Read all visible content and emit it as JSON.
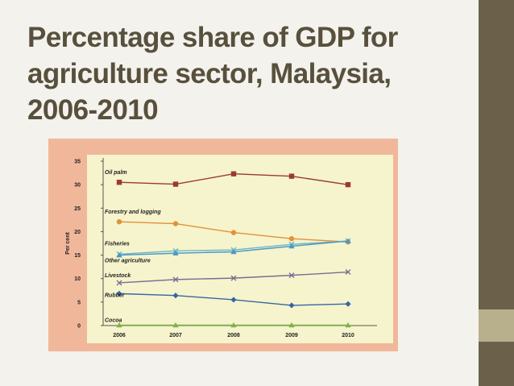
{
  "slide": {
    "title_line1": "Percentage share of GDP for",
    "title_line2": "agriculture sector, Malaysia,",
    "title_line3": "2006-2010"
  },
  "colors": {
    "oil_palm": "#9a3a34",
    "forestry": "#e0913a",
    "fisheries": "#6bb8c4",
    "other_agriculture": "#4c98c8",
    "livestock": "#7a6d96",
    "rubber": "#3566a8",
    "cocoa": "#7db545",
    "plot_bg": "#f6f4cc",
    "frame_bg": "#f1b79a"
  },
  "chart_data": {
    "type": "line",
    "title": "",
    "xlabel": "",
    "ylabel": "Per cent",
    "x": [
      "2006",
      "2007",
      "2008",
      "2009",
      "2010"
    ],
    "ylim": [
      0,
      35
    ],
    "yticks": [
      0,
      5,
      10,
      15,
      20,
      25,
      30,
      35
    ],
    "grid": false,
    "legend": "inline labels",
    "series": [
      {
        "name": "Oil palm",
        "color": "#9a3a34",
        "marker": "square",
        "values": [
          30.5,
          30.1,
          32.3,
          31.8,
          30.0
        ]
      },
      {
        "name": "Forestry and logging",
        "color": "#e0913a",
        "marker": "circle",
        "values": [
          22.1,
          21.7,
          19.8,
          18.5,
          17.8
        ]
      },
      {
        "name": "Fisheries",
        "color": "#6bb8c4",
        "marker": "x",
        "values": [
          15.2,
          15.9,
          16.1,
          17.3,
          18.0
        ]
      },
      {
        "name": "Other agriculture",
        "color": "#4c98c8",
        "marker": "triangle",
        "values": [
          15.0,
          15.4,
          15.7,
          16.9,
          18.0
        ]
      },
      {
        "name": "Livestock",
        "color": "#7a6d96",
        "marker": "x",
        "values": [
          9.1,
          9.8,
          10.1,
          10.7,
          11.4
        ]
      },
      {
        "name": "Rubber",
        "color": "#3566a8",
        "marker": "diamond",
        "values": [
          6.8,
          6.4,
          5.5,
          4.3,
          4.6
        ]
      },
      {
        "name": "Cocoa",
        "color": "#7db545",
        "marker": "triangle",
        "values": [
          0.1,
          0.1,
          0.1,
          0.1,
          0.1
        ]
      }
    ]
  }
}
